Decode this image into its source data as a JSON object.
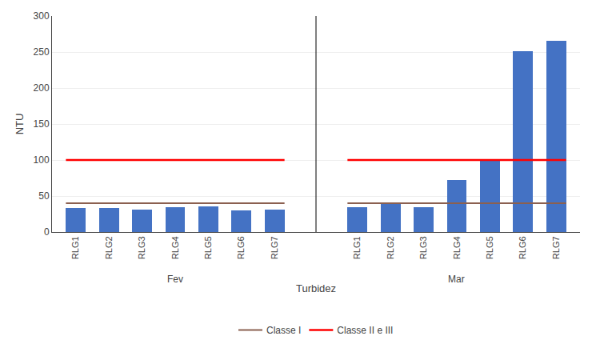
{
  "chart_data": {
    "type": "bar",
    "ylabel": "NTU",
    "xlabel": "Turbidez",
    "groups": [
      {
        "name": "Fev",
        "categories": [
          "RLG1",
          "RLG2",
          "RLG3",
          "RLG4",
          "RLG5",
          "RLG6",
          "RLG7"
        ],
        "values": [
          33,
          33,
          31,
          35,
          36,
          30,
          31
        ]
      },
      {
        "name": "Mar",
        "categories": [
          "RLG1",
          "RLG2",
          "RLG3",
          "RLG4",
          "RLG5",
          "RLG6",
          "RLG7"
        ],
        "values": [
          35,
          40,
          35,
          72,
          100,
          251,
          266
        ]
      }
    ],
    "color": "#4472C4",
    "reference_lines": [
      {
        "name": "Classe I",
        "value": 40,
        "color": "#8B6050"
      },
      {
        "name": "Classe II e III",
        "value": 100,
        "color": "#FF0000"
      }
    ],
    "ylim": [
      0,
      300
    ],
    "yticks": [
      0,
      50,
      100,
      150,
      200,
      250,
      300
    ],
    "grid": true,
    "legend": "bottom"
  }
}
